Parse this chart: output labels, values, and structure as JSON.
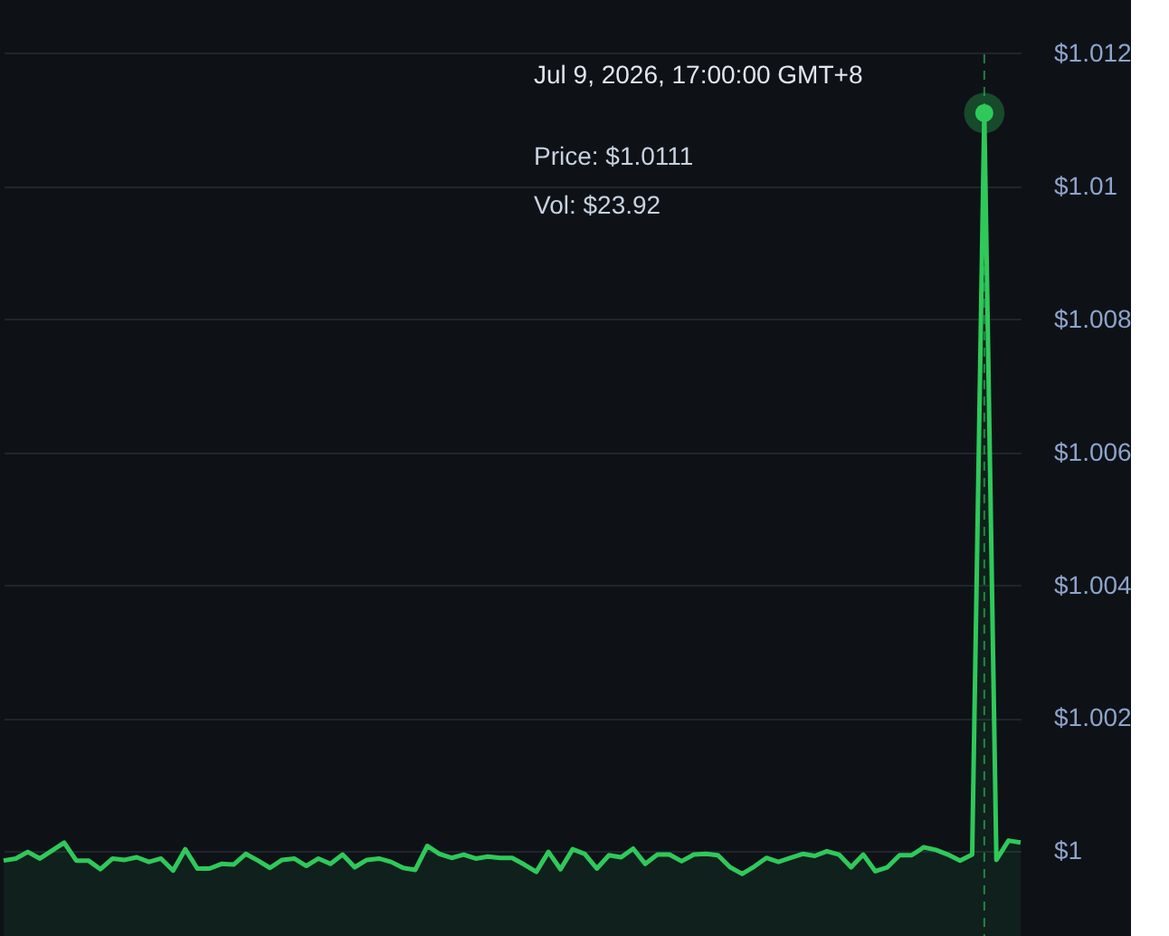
{
  "chart_data": {
    "type": "area",
    "color": "#2fc95a",
    "categories": [
      null,
      null,
      null,
      null,
      null,
      null,
      null,
      null,
      null,
      null,
      null,
      null,
      null,
      null,
      null,
      null,
      null,
      null,
      null,
      null,
      null,
      null,
      null,
      null,
      null,
      null,
      null,
      null,
      null,
      null,
      null,
      null,
      null,
      null,
      null,
      null,
      null,
      null,
      null,
      null,
      null,
      null,
      null,
      null,
      null,
      null,
      null,
      null,
      null,
      null,
      null,
      null,
      null,
      null,
      null,
      null,
      null,
      null,
      null,
      null,
      null,
      null,
      null,
      null,
      null,
      null,
      null,
      null,
      null,
      null,
      null,
      null,
      null,
      null,
      null,
      null,
      null,
      null,
      null,
      null,
      null,
      null,
      null,
      null,
      null
    ],
    "values": [
      0.99986,
      0.99989,
      0.99999,
      0.99989,
      1.00001,
      1.00013,
      0.99986,
      0.99986,
      0.99973,
      0.99989,
      0.99987,
      0.99991,
      0.99984,
      0.99989,
      0.99971,
      1.00003,
      0.99974,
      0.99974,
      0.99981,
      0.9998,
      0.99996,
      0.99986,
      0.99975,
      0.99987,
      0.99989,
      0.99978,
      0.99989,
      0.99981,
      0.99995,
      0.99976,
      0.99987,
      0.99989,
      0.99984,
      0.99975,
      0.99972,
      1.00008,
      0.99996,
      0.9999,
      0.99995,
      0.99989,
      0.99992,
      0.9999,
      0.9999,
      0.9998,
      0.99969,
      0.99999,
      0.99973,
      1.00003,
      0.99996,
      0.99974,
      0.99994,
      0.99991,
      1.00004,
      0.99981,
      0.99995,
      0.99995,
      0.99985,
      0.99995,
      0.99996,
      0.99994,
      0.99976,
      0.99966,
      0.99977,
      0.9999,
      0.99984,
      0.9999,
      0.99996,
      0.99993,
      1.0,
      0.99995,
      0.99976,
      0.99995,
      0.9997,
      0.99976,
      0.99994,
      0.99994,
      1.00006,
      1.00002,
      0.99995,
      0.99986,
      0.99995,
      1.0111,
      0.99987,
      1.00016,
      1.00013
    ],
    "ylim": [
      0.99878,
      1.0128
    ],
    "yticks": [
      {
        "value": 1.0,
        "label": "$1"
      },
      {
        "value": 1.002,
        "label": "$1.002"
      },
      {
        "value": 1.004,
        "label": "$1.004"
      },
      {
        "value": 1.006,
        "label": "$1.006"
      },
      {
        "value": 1.008,
        "label": "$1.008"
      },
      {
        "value": 1.01,
        "label": "$1.01"
      },
      {
        "value": 1.012,
        "label": "$1.012"
      }
    ],
    "grid": "y",
    "annotations": [
      "Jul 9, 2026, 17:00:00 GMT+8",
      "Price: $1.0111",
      "Vol: $23.92"
    ]
  }
}
